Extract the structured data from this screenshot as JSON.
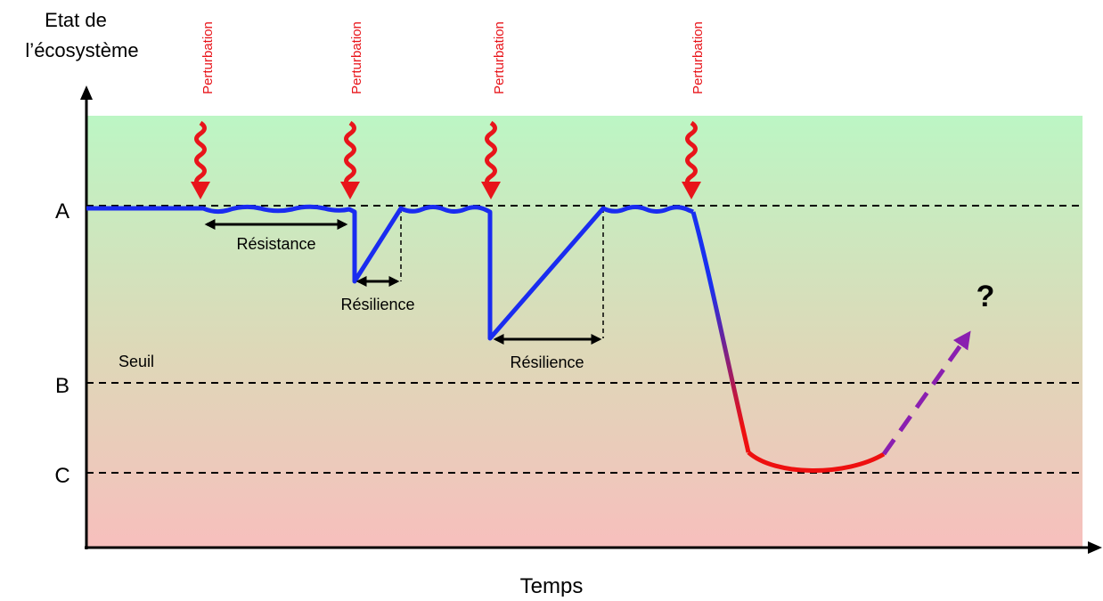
{
  "y_axis_label": [
    "Etat de",
    "l’écosystème"
  ],
  "x_axis_label": "Temps",
  "levels": {
    "a": "A",
    "b": "B",
    "c": "C"
  },
  "threshold_label": "Seuil",
  "perturbations": [
    "Perturbation",
    "Perturbation",
    "Perturbation",
    "Perturbation"
  ],
  "resistance_label": "Résistance",
  "resilience_labels": [
    "Résilience",
    "Résilience"
  ],
  "question": "?"
}
